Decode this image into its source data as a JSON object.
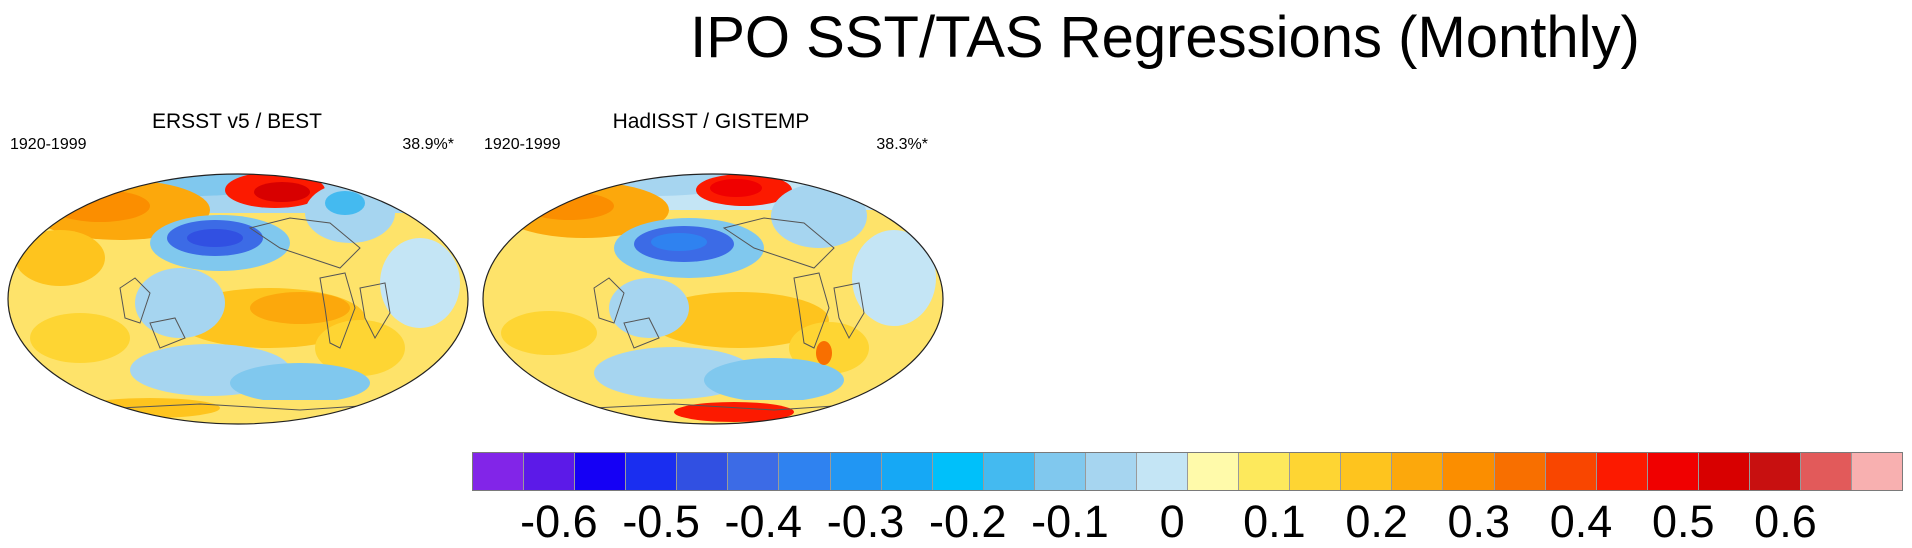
{
  "title": "IPO SST/TAS Regressions (Monthly)",
  "panels": [
    {
      "title": "ERSST v5 / BEST",
      "years": "1920-1999",
      "variance": "38.9%*"
    },
    {
      "title": "HadISST / GISTEMP",
      "years": "1920-1999",
      "variance": "38.3%*"
    }
  ],
  "colorbar": {
    "colors": [
      "#8225e8",
      "#5c1ae8",
      "#1500f5",
      "#1a2ef0",
      "#3150e2",
      "#3c6be6",
      "#2f82f0",
      "#2196f3",
      "#16a8f5",
      "#00c0fa",
      "#44baf0",
      "#80c8ee",
      "#a6d5f0",
      "#c4e5f5",
      "#fffaaa",
      "#fde95c",
      "#fed533",
      "#fec41e",
      "#fca80c",
      "#fb8e00",
      "#f86f00",
      "#f94600",
      "#fc1a00",
      "#f00000",
      "#d80000",
      "#c81010",
      "#e25a5a",
      "#f8b0b0"
    ],
    "tick_labels": [
      "-0.6",
      "-0.5",
      "-0.4",
      "-0.3",
      "-0.2",
      "-0.1",
      "0",
      "0.1",
      "0.2",
      "0.3",
      "0.4",
      "0.5",
      "0.6"
    ]
  }
}
